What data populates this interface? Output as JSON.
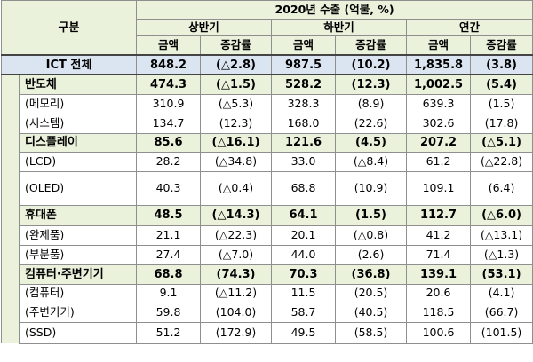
{
  "header": {
    "gubun": "구분",
    "title": "2020년 수출 (억불, %)",
    "periods": [
      "상반기",
      "하반기",
      "연간"
    ],
    "col_amount": "금액",
    "col_change": "증감률"
  },
  "total": {
    "label": "ICT 전체",
    "values": [
      "848.2",
      "(△2.8)",
      "987.5",
      "(10.2)",
      "1,835.8",
      "(3.8)"
    ]
  },
  "rows": [
    {
      "label": "반도체",
      "values": [
        "474.3",
        "(△1.5)",
        "528.2",
        "(12.3)",
        "1,002.5",
        "(5.4)"
      ]
    },
    {
      "label": "(메모리)",
      "values": [
        "310.9",
        "(△5.3)",
        "328.3",
        "(8.9)",
        "639.3",
        "(1.5)"
      ]
    },
    {
      "label": "(시스템)",
      "values": [
        "134.7",
        "(12.3)",
        "168.0",
        "(22.6)",
        "302.6",
        "(17.8)"
      ]
    },
    {
      "label": "디스플레이",
      "values": [
        "85.6",
        "(△16.1)",
        "121.6",
        "(4.5)",
        "207.2",
        "(△5.1)"
      ]
    },
    {
      "label": "(LCD)",
      "values": [
        "28.2",
        "(△34.8)",
        "33.0",
        "(△8.4)",
        "61.2",
        "(△22.8)"
      ]
    },
    {
      "label": "(OLED)",
      "values": [
        "40.3",
        "(△0.4)",
        "68.8",
        "(10.9)",
        "109.1",
        "(6.4)"
      ]
    },
    {
      "label": "휴대폰",
      "values": [
        "48.5",
        "(△14.3)",
        "64.1",
        "(1.5)",
        "112.7",
        "(△6.0)"
      ]
    },
    {
      "label": "(완제품)",
      "values": [
        "21.1",
        "(△22.3)",
        "20.1",
        "(△0.8)",
        "41.2",
        "(△13.1)"
      ]
    },
    {
      "label": "(부분품)",
      "values": [
        "27.4",
        "(△7.0)",
        "44.0",
        "(2.6)",
        "71.4",
        "(△1.3)"
      ]
    },
    {
      "label": "컴퓨터·주변기기",
      "values": [
        "68.8",
        "(74.3)",
        "70.3",
        "(36.8)",
        "139.1",
        "(53.1)"
      ]
    },
    {
      "label": "(컴퓨터)",
      "values": [
        "9.1",
        "(△11.2)",
        "11.5",
        "(20.5)",
        "20.6",
        "(4.1)"
      ]
    },
    {
      "label": "(주변기기)",
      "values": [
        "59.8",
        "(104.0)",
        "58.7",
        "(40.5)",
        "118.5",
        "(66.7)"
      ]
    },
    {
      "label": "(SSD)",
      "values": [
        "51.2",
        "(172.9)",
        "49.5",
        "(58.5)",
        "100.6",
        "(101.5)"
      ]
    }
  ]
}
